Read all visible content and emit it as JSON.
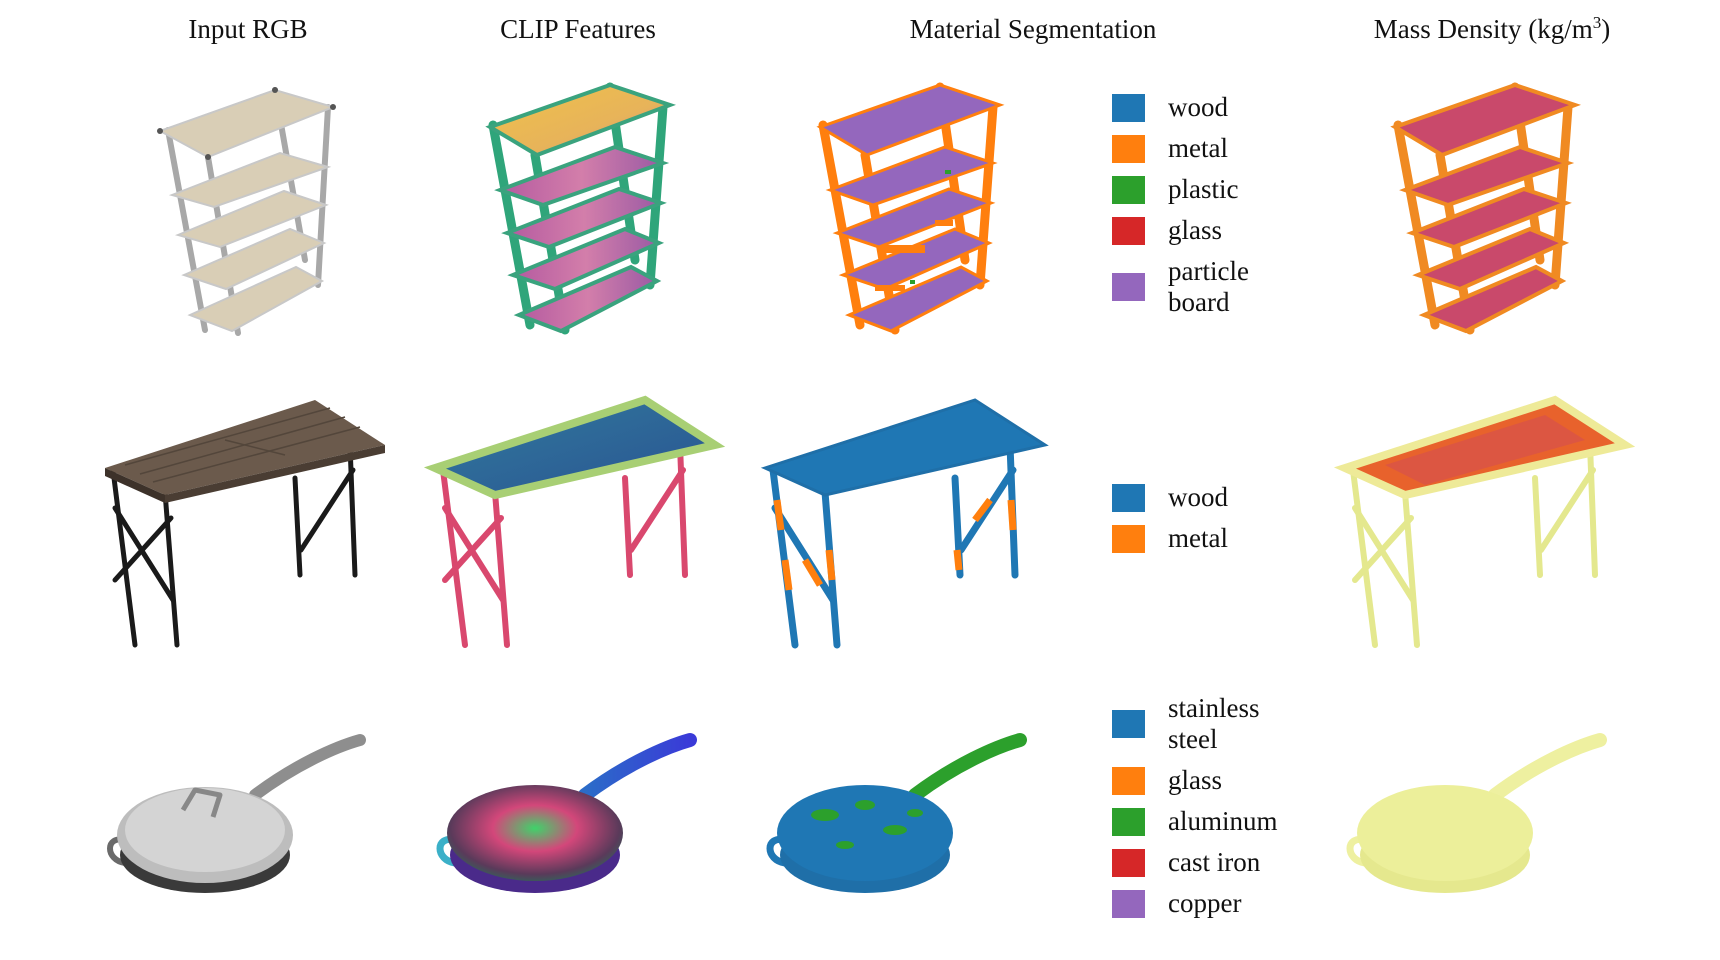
{
  "headers": {
    "input": "Input RGB",
    "clip": "CLIP Features",
    "segmentation": "Material Segmentation",
    "density_main": "Mass Density (kg/m",
    "density_sup": "3",
    "density_close": ")"
  },
  "colors": {
    "blue": "#1f77b4",
    "orange": "#ff7f0e",
    "green": "#2ca02c",
    "red": "#d62728",
    "purple": "#9467bd",
    "density_high": "#e8652a",
    "density_mid": "#c6406a",
    "density_low": "#ecef9a"
  },
  "rows": [
    {
      "object": "shelf",
      "legend": [
        {
          "label": "wood",
          "color": "#1f77b4"
        },
        {
          "label": "metal",
          "color": "#ff7f0e"
        },
        {
          "label": "plastic",
          "color": "#2ca02c"
        },
        {
          "label": "glass",
          "color": "#d62728"
        },
        {
          "label": "particle board",
          "color": "#9467bd"
        }
      ]
    },
    {
      "object": "table",
      "legend": [
        {
          "label": "wood",
          "color": "#1f77b4"
        },
        {
          "label": "metal",
          "color": "#ff7f0e"
        }
      ]
    },
    {
      "object": "pan",
      "legend": [
        {
          "label": "stainless steel",
          "color": "#1f77b4"
        },
        {
          "label": "glass",
          "color": "#ff7f0e"
        },
        {
          "label": "aluminum",
          "color": "#2ca02c"
        },
        {
          "label": "cast iron",
          "color": "#d62728"
        },
        {
          "label": "copper",
          "color": "#9467bd"
        }
      ]
    }
  ]
}
